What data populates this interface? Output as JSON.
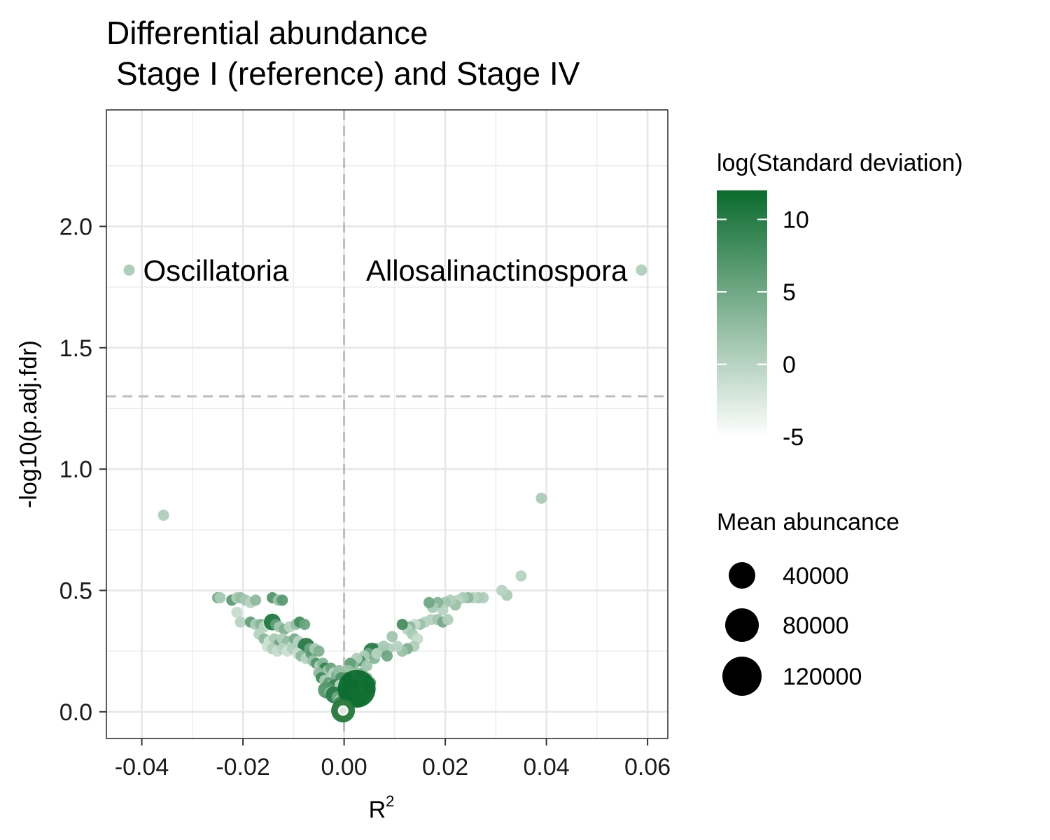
{
  "chart_data": {
    "type": "scatter",
    "title_line1": "Differential abundance",
    "title_line2": "Stage I (reference) and Stage IV",
    "xlabel": "R",
    "xlabel_sup": "2",
    "ylabel": "-log10(p.adj.fdr)",
    "xlim": [
      -0.047,
      0.064
    ],
    "ylim": [
      -0.11,
      2.48
    ],
    "x_ticks": [
      -0.04,
      -0.02,
      0.0,
      0.02,
      0.04,
      0.06
    ],
    "x_tick_labels": [
      "-0.04",
      "-0.02",
      "0.00",
      "0.02",
      "0.04",
      "0.06"
    ],
    "y_ticks": [
      0.0,
      0.5,
      1.0,
      1.5,
      2.0
    ],
    "y_tick_labels": [
      "0.0",
      "0.5",
      "1.0",
      "1.5",
      "2.0"
    ],
    "grid": true,
    "hline": 1.3,
    "vline": 0.0,
    "color_legend": {
      "title": "log(Standard deviation)",
      "min": -5,
      "max": 12,
      "ticks": [
        10,
        5,
        0,
        -5
      ],
      "tick_labels": [
        "10",
        "5",
        "0",
        "-5"
      ],
      "low_color": "#ffffff",
      "high_color": "#0b6b2e"
    },
    "size_legend": {
      "title": "Mean abuncance",
      "values": [
        40000,
        80000,
        120000
      ],
      "labels": [
        "40000",
        "80000",
        "120000"
      ]
    },
    "labels": [
      {
        "text": "Oscillatoria",
        "x": -0.0425,
        "y": 1.82
      },
      {
        "text": "Allosalinactinospora",
        "x": 0.0588,
        "y": 1.82
      }
    ],
    "points": [
      {
        "x": -0.0425,
        "y": 1.82,
        "c": 1.0,
        "s": 0
      },
      {
        "x": 0.0588,
        "y": 1.82,
        "c": 0.5,
        "s": 0
      },
      {
        "x": -0.0357,
        "y": 0.81,
        "c": 0.5,
        "s": 0
      },
      {
        "x": 0.039,
        "y": 0.88,
        "c": 1.0,
        "s": 0
      },
      {
        "x": 0.035,
        "y": 0.56,
        "c": 0.0,
        "s": 0
      },
      {
        "x": 0.0322,
        "y": 0.48,
        "c": 1.0,
        "s": 0
      },
      {
        "x": 0.0312,
        "y": 0.5,
        "c": 0.0,
        "s": 0
      },
      {
        "x": 0.0275,
        "y": 0.47,
        "c": 0.5,
        "s": 0
      },
      {
        "x": 0.0265,
        "y": 0.47,
        "c": 1.0,
        "s": 0
      },
      {
        "x": 0.0255,
        "y": 0.47,
        "c": 0.0,
        "s": 0
      },
      {
        "x": 0.0245,
        "y": 0.47,
        "c": 3.0,
        "s": 0
      },
      {
        "x": 0.0235,
        "y": 0.47,
        "c": 1.0,
        "s": 0
      },
      {
        "x": 0.0225,
        "y": 0.46,
        "c": 0.0,
        "s": 0
      },
      {
        "x": 0.022,
        "y": 0.44,
        "c": 2.0,
        "s": 0
      },
      {
        "x": 0.021,
        "y": 0.46,
        "c": 0.5,
        "s": 0
      },
      {
        "x": 0.02,
        "y": 0.45,
        "c": 1.5,
        "s": 0
      },
      {
        "x": 0.0195,
        "y": 0.42,
        "c": 0.0,
        "s": 0
      },
      {
        "x": 0.0185,
        "y": 0.45,
        "c": 3.5,
        "s": 0
      },
      {
        "x": 0.0175,
        "y": 0.43,
        "c": 1.0,
        "s": 0
      },
      {
        "x": 0.0168,
        "y": 0.45,
        "c": 5.0,
        "s": 0
      },
      {
        "x": 0.0172,
        "y": 0.38,
        "c": 0.0,
        "s": 0
      },
      {
        "x": 0.0185,
        "y": 0.38,
        "c": 1.5,
        "s": 0
      },
      {
        "x": 0.0195,
        "y": 0.37,
        "c": 4.5,
        "s": 0
      },
      {
        "x": 0.0205,
        "y": 0.38,
        "c": 0.5,
        "s": 0
      },
      {
        "x": 0.016,
        "y": 0.37,
        "c": 0.0,
        "s": 0
      },
      {
        "x": 0.015,
        "y": 0.36,
        "c": 2.0,
        "s": 0
      },
      {
        "x": 0.014,
        "y": 0.36,
        "c": -1.0,
        "s": 0
      },
      {
        "x": 0.013,
        "y": 0.35,
        "c": 3.0,
        "s": 0
      },
      {
        "x": 0.0125,
        "y": 0.34,
        "c": 0.0,
        "s": 0
      },
      {
        "x": 0.0115,
        "y": 0.36,
        "c": 8.0,
        "s": 0
      },
      {
        "x": 0.0135,
        "y": 0.32,
        "c": 1.0,
        "s": 0
      },
      {
        "x": 0.0145,
        "y": 0.3,
        "c": -1.0,
        "s": 0
      },
      {
        "x": 0.0138,
        "y": 0.27,
        "c": 0.5,
        "s": 0
      },
      {
        "x": 0.0125,
        "y": 0.26,
        "c": 4.0,
        "s": 0
      },
      {
        "x": 0.0115,
        "y": 0.25,
        "c": 2.0,
        "s": 0
      },
      {
        "x": 0.0105,
        "y": 0.27,
        "c": 0.0,
        "s": 0
      },
      {
        "x": 0.0095,
        "y": 0.31,
        "c": 1.5,
        "s": 0
      },
      {
        "x": 0.0088,
        "y": 0.26,
        "c": 0.5,
        "s": 0
      },
      {
        "x": 0.0075,
        "y": 0.25,
        "c": 9.0,
        "s": 0
      },
      {
        "x": 0.0065,
        "y": 0.26,
        "c": 2.0,
        "s": 0
      },
      {
        "x": 0.0055,
        "y": 0.25,
        "c": 10.0,
        "s": 1
      },
      {
        "x": 0.0048,
        "y": 0.24,
        "c": 5.0,
        "s": 0
      },
      {
        "x": 0.004,
        "y": 0.23,
        "c": 1.0,
        "s": 0
      },
      {
        "x": 0.0032,
        "y": 0.21,
        "c": 7.0,
        "s": 0
      },
      {
        "x": 0.0025,
        "y": 0.22,
        "c": 0.5,
        "s": 0
      },
      {
        "x": 0.0018,
        "y": 0.19,
        "c": 3.0,
        "s": 0
      },
      {
        "x": 0.0012,
        "y": 0.2,
        "c": 6.0,
        "s": 0
      },
      {
        "x": 0.0008,
        "y": 0.17,
        "c": 2.0,
        "s": 0
      },
      {
        "x": 0.0005,
        "y": 0.14,
        "c": 8.0,
        "s": 0
      },
      {
        "x": 0.0035,
        "y": 0.16,
        "c": 4.0,
        "s": 0
      },
      {
        "x": 0.0045,
        "y": 0.19,
        "c": 1.5,
        "s": 0
      },
      {
        "x": 0.006,
        "y": 0.22,
        "c": 3.5,
        "s": 0
      },
      {
        "x": 0.0065,
        "y": 0.24,
        "c": 0.0,
        "s": 0
      },
      {
        "x": 0.0078,
        "y": 0.27,
        "c": 1.0,
        "s": 0
      },
      {
        "x": 0.0085,
        "y": 0.23,
        "c": 5.0,
        "s": 0
      },
      {
        "x": -0.025,
        "y": 0.47,
        "c": 4.5,
        "s": 0
      },
      {
        "x": -0.0245,
        "y": 0.47,
        "c": 1.0,
        "s": 0
      },
      {
        "x": -0.0222,
        "y": 0.46,
        "c": 6.5,
        "s": 0
      },
      {
        "x": -0.0212,
        "y": 0.47,
        "c": 0.5,
        "s": 0
      },
      {
        "x": -0.0205,
        "y": 0.47,
        "c": 2.5,
        "s": 0
      },
      {
        "x": -0.0195,
        "y": 0.46,
        "c": 1.5,
        "s": 0
      },
      {
        "x": -0.0185,
        "y": 0.45,
        "c": 0.0,
        "s": 0
      },
      {
        "x": -0.0175,
        "y": 0.46,
        "c": 3.0,
        "s": 0
      },
      {
        "x": -0.0142,
        "y": 0.47,
        "c": 7.0,
        "s": 0
      },
      {
        "x": -0.013,
        "y": 0.46,
        "c": 2.0,
        "s": 0
      },
      {
        "x": -0.0122,
        "y": 0.46,
        "c": 6.5,
        "s": 0
      },
      {
        "x": -0.0212,
        "y": 0.41,
        "c": -1.0,
        "s": 0
      },
      {
        "x": -0.0205,
        "y": 0.37,
        "c": 0.0,
        "s": 0
      },
      {
        "x": -0.0185,
        "y": 0.37,
        "c": 6.0,
        "s": 0
      },
      {
        "x": -0.0175,
        "y": 0.36,
        "c": 1.0,
        "s": 0
      },
      {
        "x": -0.0165,
        "y": 0.36,
        "c": 3.5,
        "s": 0
      },
      {
        "x": -0.0158,
        "y": 0.35,
        "c": 0.0,
        "s": 0
      },
      {
        "x": -0.015,
        "y": 0.36,
        "c": -1.0,
        "s": 0
      },
      {
        "x": -0.0142,
        "y": 0.37,
        "c": 10.5,
        "s": 1
      },
      {
        "x": -0.0135,
        "y": 0.36,
        "c": 6.0,
        "s": 0
      },
      {
        "x": -0.0128,
        "y": 0.35,
        "c": 1.5,
        "s": 0
      },
      {
        "x": -0.0118,
        "y": 0.34,
        "c": 4.0,
        "s": 0
      },
      {
        "x": -0.0108,
        "y": 0.35,
        "c": 0.0,
        "s": 0
      },
      {
        "x": -0.0095,
        "y": 0.36,
        "c": 2.5,
        "s": 0
      },
      {
        "x": -0.0088,
        "y": 0.37,
        "c": 8.0,
        "s": 0
      },
      {
        "x": -0.0078,
        "y": 0.36,
        "c": 5.5,
        "s": 0
      },
      {
        "x": -0.0168,
        "y": 0.32,
        "c": 0.0,
        "s": 0
      },
      {
        "x": -0.0158,
        "y": 0.3,
        "c": 3.0,
        "s": 0
      },
      {
        "x": -0.0148,
        "y": 0.29,
        "c": -1.5,
        "s": 0
      },
      {
        "x": -0.0138,
        "y": 0.3,
        "c": 1.0,
        "s": 0
      },
      {
        "x": -0.0128,
        "y": 0.28,
        "c": 5.5,
        "s": 0
      },
      {
        "x": -0.0122,
        "y": 0.3,
        "c": 0.5,
        "s": 0
      },
      {
        "x": -0.0112,
        "y": 0.29,
        "c": 2.5,
        "s": 0
      },
      {
        "x": -0.0102,
        "y": 0.27,
        "c": -1.0,
        "s": 0
      },
      {
        "x": -0.0098,
        "y": 0.3,
        "c": 4.5,
        "s": 0
      },
      {
        "x": -0.009,
        "y": 0.29,
        "c": 0.0,
        "s": 0
      },
      {
        "x": -0.0082,
        "y": 0.28,
        "c": 1.5,
        "s": 0
      },
      {
        "x": -0.0075,
        "y": 0.27,
        "c": 10.0,
        "s": 1
      },
      {
        "x": -0.0068,
        "y": 0.26,
        "c": 5.0,
        "s": 0
      },
      {
        "x": -0.0152,
        "y": 0.27,
        "c": -1.5,
        "s": 0
      },
      {
        "x": -0.0142,
        "y": 0.26,
        "c": 0.5,
        "s": 0
      },
      {
        "x": -0.0132,
        "y": 0.25,
        "c": -1.0,
        "s": 0
      },
      {
        "x": -0.0122,
        "y": 0.26,
        "c": 0.0,
        "s": 0
      },
      {
        "x": -0.0112,
        "y": 0.25,
        "c": -1.5,
        "s": 0
      },
      {
        "x": -0.0102,
        "y": 0.26,
        "c": 0.5,
        "s": 0
      },
      {
        "x": -0.0092,
        "y": 0.24,
        "c": -1.0,
        "s": 0
      },
      {
        "x": -0.0085,
        "y": 0.23,
        "c": 3.0,
        "s": 0
      },
      {
        "x": -0.0075,
        "y": 0.22,
        "c": 0.0,
        "s": 0
      },
      {
        "x": -0.0065,
        "y": 0.24,
        "c": 6.5,
        "s": 0
      },
      {
        "x": -0.0058,
        "y": 0.26,
        "c": 1.0,
        "s": 0
      },
      {
        "x": -0.005,
        "y": 0.25,
        "c": 4.0,
        "s": 0
      },
      {
        "x": -0.0062,
        "y": 0.21,
        "c": 2.0,
        "s": 0
      },
      {
        "x": -0.0055,
        "y": 0.2,
        "c": 7.0,
        "s": 0
      },
      {
        "x": -0.0048,
        "y": 0.19,
        "c": 0.5,
        "s": 0
      },
      {
        "x": -0.0042,
        "y": 0.2,
        "c": 3.5,
        "s": 0
      },
      {
        "x": -0.0038,
        "y": 0.18,
        "c": 9.0,
        "s": 0
      },
      {
        "x": -0.0032,
        "y": 0.17,
        "c": 1.5,
        "s": 0
      },
      {
        "x": -0.0026,
        "y": 0.18,
        "c": 5.5,
        "s": 0
      },
      {
        "x": -0.002,
        "y": 0.16,
        "c": 0.0,
        "s": 0
      },
      {
        "x": -0.0015,
        "y": 0.15,
        "c": 4.0,
        "s": 0
      },
      {
        "x": -0.001,
        "y": 0.17,
        "c": 2.5,
        "s": 0
      },
      {
        "x": -0.0006,
        "y": 0.14,
        "c": 7.5,
        "s": 0
      },
      {
        "x": -0.005,
        "y": 0.16,
        "c": 3.0,
        "s": 0
      },
      {
        "x": -0.0045,
        "y": 0.14,
        "c": 8.5,
        "s": 0
      },
      {
        "x": -0.0038,
        "y": 0.13,
        "c": 1.0,
        "s": 0
      },
      {
        "x": -0.003,
        "y": 0.12,
        "c": 6.0,
        "s": 0
      },
      {
        "x": -0.0024,
        "y": 0.11,
        "c": 2.0,
        "s": 0
      },
      {
        "x": -0.0018,
        "y": 0.1,
        "c": 9.5,
        "s": 1
      },
      {
        "x": -0.0012,
        "y": 0.09,
        "c": 4.5,
        "s": 0
      },
      {
        "x": -0.0008,
        "y": 0.11,
        "c": 0.0,
        "s": 0
      },
      {
        "x": -0.0035,
        "y": 0.09,
        "c": 7.0,
        "s": 1
      },
      {
        "x": -0.0028,
        "y": 0.08,
        "c": 3.0,
        "s": 0
      },
      {
        "x": -0.002,
        "y": 0.07,
        "c": 10.0,
        "s": 1
      },
      {
        "x": -0.0014,
        "y": 0.06,
        "c": 5.0,
        "s": 0
      },
      {
        "x": -0.0008,
        "y": 0.05,
        "c": 1.5,
        "s": 0
      },
      {
        "x": 0.0002,
        "y": 0.09,
        "c": 4.0,
        "s": 0
      },
      {
        "x": 0.0006,
        "y": 0.07,
        "c": 8.0,
        "s": 1
      },
      {
        "x": 0.001,
        "y": 0.05,
        "c": 2.0,
        "s": 0
      },
      {
        "x": 0.0015,
        "y": 0.04,
        "c": 6.5,
        "s": 0
      },
      {
        "x": 0.0022,
        "y": 0.06,
        "c": 9.0,
        "s": 1
      },
      {
        "x": 0.0028,
        "y": 0.04,
        "c": 3.5,
        "s": 0
      },
      {
        "x": 0.0035,
        "y": 0.05,
        "c": 5.5,
        "s": 0
      },
      {
        "x": 0.0042,
        "y": 0.07,
        "c": 1.0,
        "s": 0
      },
      {
        "x": 0.0048,
        "y": 0.09,
        "c": 4.0,
        "s": 0
      },
      {
        "x": 0.0052,
        "y": 0.12,
        "c": 7.0,
        "s": 0
      },
      {
        "x": 0.0045,
        "y": 0.14,
        "c": 2.5,
        "s": 0
      },
      {
        "x": 0.0038,
        "y": 0.12,
        "c": 6.0,
        "s": 0
      },
      {
        "x": 0.0028,
        "y": 0.13,
        "c": 0.5,
        "s": 0
      },
      {
        "x": 0.002,
        "y": 0.11,
        "c": 5.0,
        "s": 0
      },
      {
        "x": -0.0005,
        "y": 0.03,
        "c": 8.5,
        "s": 1
      },
      {
        "x": 0.0005,
        "y": 0.02,
        "c": 3.0,
        "s": 0
      },
      {
        "x": -0.0003,
        "y": 0.08,
        "c": 6.5,
        "s": 0
      },
      {
        "x": 0.0012,
        "y": 0.1,
        "c": 9.0,
        "s": 1
      },
      {
        "x": 0.0018,
        "y": 0.08,
        "c": 5.0,
        "s": 0
      },
      {
        "x": 0.0025,
        "y": 0.095,
        "c": 12.0,
        "s": 3
      },
      {
        "x": -0.0002,
        "y": 0.005,
        "c": 10.5,
        "s": 2
      },
      {
        "x": 0.0,
        "y": 0.005,
        "c": 1.0,
        "s": 0
      }
    ]
  }
}
